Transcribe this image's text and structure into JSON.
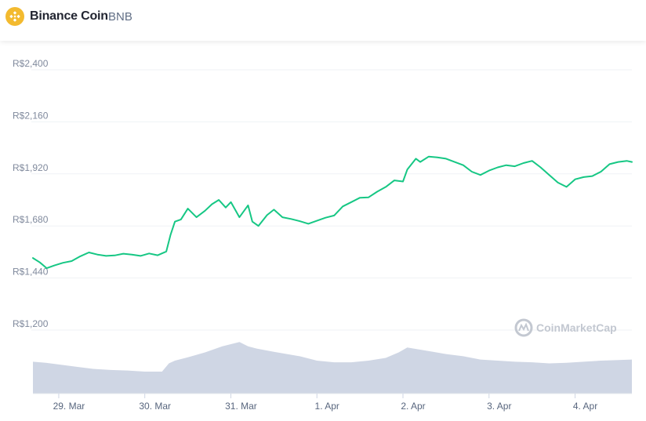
{
  "header": {
    "coin_name": "Binance Coin",
    "coin_symbol": "BNB",
    "logo_icon": "bnb-logo-icon",
    "logo_color": "#F3BA2F"
  },
  "watermark": {
    "text": "CoinMarketCap",
    "icon": "coinmarketcap-logo-icon"
  },
  "colors": {
    "price_line": "#16c784",
    "volume_fill": "#cfd6e4",
    "grid": "#eff2f5"
  },
  "chart_data": {
    "type": "line",
    "title": "",
    "xlabel": "",
    "ylabel": "",
    "y_ticks": [
      "R$2,400",
      "R$2,160",
      "R$1,920",
      "R$1,680",
      "R$1,440",
      "R$1,200"
    ],
    "ylim": [
      1200,
      2400
    ],
    "x_ticks": [
      "29. Mar",
      "30. Mar",
      "31. Mar",
      "1. Apr",
      "2. Apr",
      "3. Apr",
      "4. Apr"
    ],
    "x_range_days": [
      28.7,
      35.66
    ],
    "grid": true,
    "series": [
      {
        "kind": "price",
        "x": [
          28.7,
          28.78,
          28.86,
          28.95,
          29.05,
          29.15,
          29.25,
          29.35,
          29.45,
          29.55,
          29.65,
          29.75,
          29.85,
          29.95,
          30.05,
          30.15,
          30.25,
          30.3,
          30.35,
          30.42,
          30.5,
          30.6,
          30.7,
          30.78,
          30.86,
          30.94,
          31.0,
          31.1,
          31.2,
          31.25,
          31.32,
          31.42,
          31.5,
          31.6,
          31.7,
          31.8,
          31.9,
          32.0,
          32.1,
          32.2,
          32.3,
          32.4,
          32.5,
          32.6,
          32.7,
          32.8,
          32.9,
          33.0,
          33.05,
          33.15,
          33.2,
          33.3,
          33.4,
          33.5,
          33.6,
          33.7,
          33.8,
          33.9,
          34.0,
          34.1,
          34.2,
          34.3,
          34.4,
          34.5,
          34.6,
          34.7,
          34.8,
          34.9,
          35.0,
          35.1,
          35.2,
          35.3,
          35.4,
          35.5,
          35.6,
          35.66
        ],
        "y": [
          1532,
          1512,
          1485,
          1498,
          1510,
          1518,
          1540,
          1558,
          1548,
          1542,
          1544,
          1552,
          1548,
          1542,
          1553,
          1545,
          1562,
          1640,
          1700,
          1710,
          1760,
          1720,
          1750,
          1780,
          1800,
          1765,
          1790,
          1720,
          1775,
          1700,
          1680,
          1730,
          1755,
          1720,
          1712,
          1702,
          1690,
          1704,
          1718,
          1728,
          1770,
          1790,
          1810,
          1812,
          1838,
          1860,
          1890,
          1885,
          1940,
          1990,
          1975,
          2000,
          1996,
          1990,
          1975,
          1960,
          1930,
          1915,
          1935,
          1950,
          1960,
          1955,
          1970,
          1980,
          1950,
          1915,
          1880,
          1860,
          1895,
          1905,
          1910,
          1930,
          1965,
          1975,
          1980,
          1975
        ]
      },
      {
        "kind": "volume",
        "x": [
          28.7,
          28.85,
          29.0,
          29.2,
          29.4,
          29.6,
          29.8,
          30.0,
          30.2,
          30.28,
          30.35,
          30.5,
          30.7,
          30.9,
          31.1,
          31.2,
          31.3,
          31.5,
          31.8,
          32.0,
          32.2,
          32.4,
          32.6,
          32.8,
          32.95,
          33.05,
          33.2,
          33.35,
          33.5,
          33.7,
          33.9,
          34.1,
          34.3,
          34.5,
          34.7,
          34.9,
          35.1,
          35.3,
          35.5,
          35.66
        ],
        "y": [
          0.58,
          0.56,
          0.53,
          0.49,
          0.45,
          0.43,
          0.42,
          0.4,
          0.4,
          0.55,
          0.6,
          0.66,
          0.75,
          0.86,
          0.94,
          0.86,
          0.82,
          0.76,
          0.68,
          0.6,
          0.57,
          0.57,
          0.6,
          0.65,
          0.75,
          0.84,
          0.8,
          0.76,
          0.72,
          0.68,
          0.62,
          0.6,
          0.58,
          0.57,
          0.55,
          0.56,
          0.58,
          0.6,
          0.61,
          0.62
        ]
      }
    ]
  }
}
